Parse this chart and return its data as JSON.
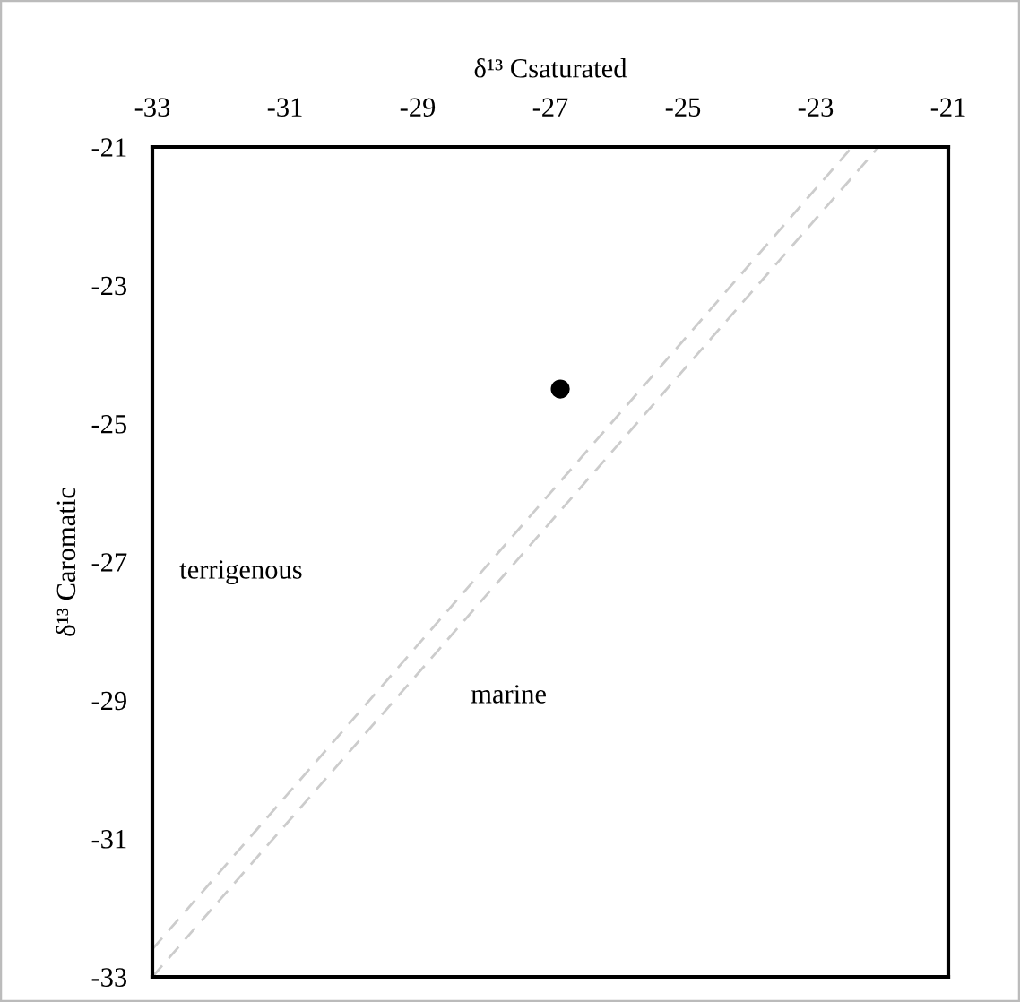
{
  "chart_data": {
    "type": "scatter",
    "xlabel": "δ¹³ Csaturated",
    "ylabel": "δ¹³ Caromatic",
    "xlim": [
      -33,
      -21
    ],
    "ylim": [
      -33,
      -21
    ],
    "xticks": [
      -33,
      -31,
      -29,
      -27,
      -25,
      -23,
      -21
    ],
    "yticks": [
      -33,
      -31,
      -29,
      -27,
      -25,
      -23,
      -21
    ],
    "x": [
      -26.85
    ],
    "values": [
      -24.5
    ],
    "color": "#000000",
    "marker": "circle",
    "grid": false,
    "series": [
      {
        "type": "line",
        "x": [
          -33,
          -22.45
        ],
        "values": [
          -32.6,
          -21
        ],
        "color": "#cccccc",
        "line_style": "dashed",
        "marker": "none"
      },
      {
        "type": "line",
        "x": [
          -33,
          -22.05
        ],
        "values": [
          -33,
          -21
        ],
        "color": "#cccccc",
        "line_style": "dashed",
        "marker": "none"
      }
    ],
    "annotations": [
      "terrigenous",
      "marine"
    ]
  }
}
